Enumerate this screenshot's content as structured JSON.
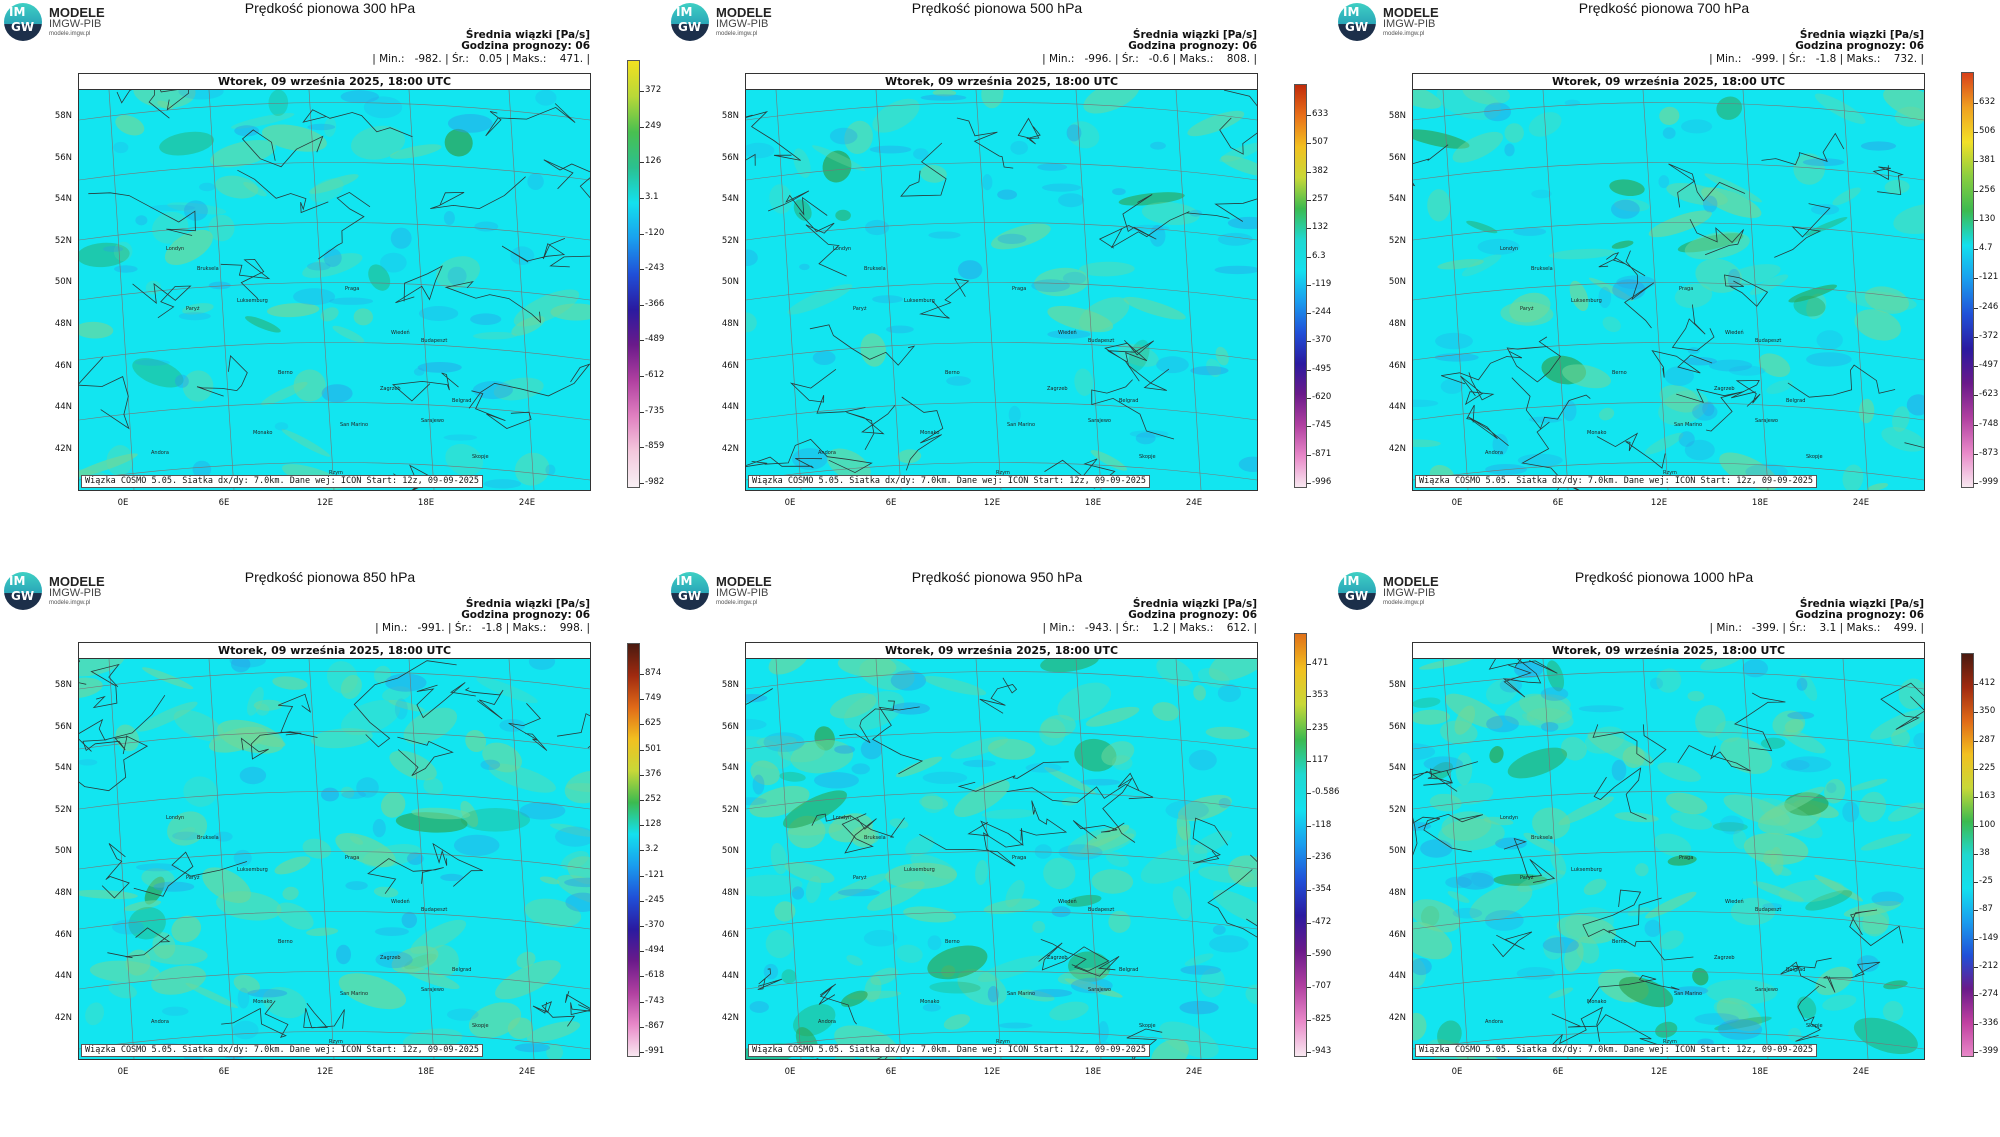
{
  "logo": {
    "badge_top": "IM",
    "badge_bottom": "GW",
    "line1": "MODELE",
    "line2": "IMGW-PIB",
    "line3": "modele.imgw.pl"
  },
  "common": {
    "info_line1": "Średnia wiązki [Pa/s]",
    "info_line2": "Godzina prognozy: 06",
    "date": "Wtorek, 09 września 2025, 18:00 UTC",
    "footer": "Wiązka COSMO 5.05. Siatka dx/dy: 7.0km. Dane wej: ICON Start: 12z, 09-09-2025",
    "lat_labels": [
      "58N",
      "56N",
      "54N",
      "52N",
      "50N",
      "48N",
      "46N",
      "44N",
      "42N"
    ],
    "lon_labels": [
      "0E",
      "6E",
      "12E",
      "18E",
      "24E"
    ],
    "cities": [
      "Londyn",
      "Bruksela",
      "Luksemburg",
      "Paryż",
      "Praga",
      "Wiedeń",
      "Budapeszt",
      "Berno",
      "Zagrzeb",
      "Belgrad",
      "San Marino",
      "Sarajewo",
      "Monako",
      "Andora",
      "Skopje",
      "Rzym"
    ]
  },
  "panels": [
    {
      "title": "Prędkość pionowa 300 hPa",
      "stats": "| Min.:   -982. | Śr.:   0.05 | Maks.:    471. |",
      "ticks": [
        "372",
        "249",
        "126",
        "3.1",
        "-120",
        "-243",
        "-366",
        "-489",
        "-612",
        "-735",
        "-859",
        "-982"
      ]
    },
    {
      "title": "Prędkość pionowa 500 hPa",
      "stats": "| Min.:   -996. | Śr.:   -0.6 | Maks.:    808. |",
      "ticks": [
        "633",
        "507",
        "382",
        "257",
        "132",
        "6.3",
        "-119",
        "-244",
        "-370",
        "-495",
        "-620",
        "-745",
        "-871",
        "-996"
      ]
    },
    {
      "title": "Prędkość pionowa 700 hPa",
      "stats": "| Min.:   -999. | Śr.:   -1.8 | Maks.:    732. |",
      "ticks": [
        "632",
        "506",
        "381",
        "256",
        "130",
        "4.7",
        "-121",
        "-246",
        "-372",
        "-497",
        "-623",
        "-748",
        "-873",
        "-999"
      ]
    },
    {
      "title": "Prędkość pionowa 850 hPa",
      "stats": "| Min.:   -991. | Śr.:   -1.8 | Maks.:    998. |",
      "ticks": [
        "874",
        "749",
        "625",
        "501",
        "376",
        "252",
        "128",
        "3.2",
        "-121",
        "-245",
        "-370",
        "-494",
        "-618",
        "-743",
        "-867",
        "-991"
      ]
    },
    {
      "title": "Prędkość pionowa 950 hPa",
      "stats": "| Min.:   -943. | Śr.:    1.2 | Maks.:    612. |",
      "ticks": [
        "471",
        "353",
        "235",
        "117",
        "-0.586",
        "-118",
        "-236",
        "-354",
        "-472",
        "-590",
        "-707",
        "-825",
        "-943"
      ]
    },
    {
      "title": "Prędkość pionowa 1000 hPa",
      "stats": "| Min.:   -399. | Śr.:    3.1 | Maks.:    499. |",
      "ticks": [
        "412",
        "350",
        "287",
        "225",
        "163",
        "100",
        "38",
        "-25",
        "-87",
        "-149",
        "-212",
        "-274",
        "-336",
        "-399"
      ]
    }
  ],
  "colors": {
    "field_base": "#12e5f0",
    "field_green": "#6fd89a",
    "border_line": "#2a3a3a"
  }
}
